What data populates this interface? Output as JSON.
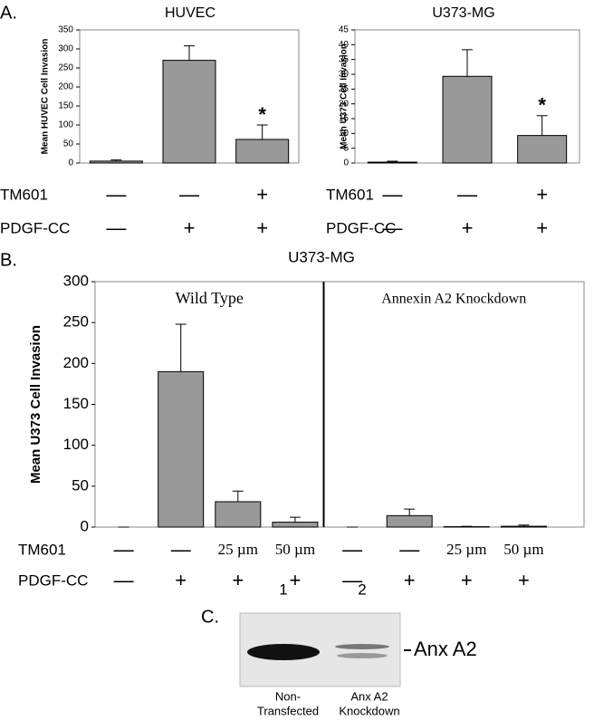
{
  "chart_data": [
    {
      "type": "bar",
      "title": "HUVEC",
      "y_label": "Mean HUVEC Cell Invasion",
      "categories": [
        null,
        null,
        null
      ],
      "values": [
        5,
        270,
        62
      ],
      "errors": [
        3,
        38,
        38
      ],
      "color": "#999999",
      "ylim": [
        0,
        350
      ],
      "yticks": [
        0,
        50,
        100,
        150,
        200,
        250,
        300,
        350
      ],
      "annotation": "*",
      "conditions": [
        {
          "name": "TM601",
          "labels": [
            "—",
            "—",
            "+"
          ]
        },
        {
          "name": "PDGF-CC",
          "labels": [
            "—",
            "+",
            "+"
          ]
        }
      ]
    },
    {
      "type": "bar",
      "title": "U373-MG",
      "y_label": "Mean U373 Cell Invasion",
      "categories": [
        null,
        null,
        null
      ],
      "values": [
        0.3,
        29.3,
        9.3
      ],
      "errors": [
        0.3,
        9,
        6.7
      ],
      "color": "#999999",
      "ylim": [
        0,
        45
      ],
      "yticks": [
        0,
        5,
        10,
        15,
        20,
        25,
        30,
        35,
        40,
        45
      ],
      "annotation": "*",
      "conditions": [
        {
          "name": "TM601",
          "labels": [
            "—",
            "—",
            "+"
          ]
        },
        {
          "name": "PDGF-CC",
          "labels": [
            "—",
            "+",
            "+"
          ]
        }
      ]
    },
    {
      "type": "bar",
      "title": "U373-MG",
      "y_label": "Mean U373 Cell Invasion",
      "panel_titles": [
        "Wild Type",
        "Annexin A2 Knockdown"
      ],
      "categories": [
        null,
        null,
        null,
        null,
        null,
        null,
        null,
        null
      ],
      "values": [
        0,
        190,
        31,
        6,
        0,
        14,
        0.5,
        1
      ],
      "errors": [
        0,
        58,
        13,
        6,
        0,
        8,
        0.5,
        1.5
      ],
      "color": "#999999",
      "ylim": [
        0,
        300
      ],
      "yticks": [
        0,
        50,
        100,
        150,
        200,
        250,
        300
      ],
      "conditions": [
        {
          "name": "TM601",
          "labels": [
            "—",
            "—",
            "25 µm",
            "50 µm",
            "—",
            "—",
            "25 µm",
            "50 µm"
          ]
        },
        {
          "name": "PDGF-CC",
          "labels": [
            "—",
            "+",
            "+",
            "+",
            "—",
            "+",
            "+",
            "+"
          ]
        }
      ]
    }
  ],
  "panel_labels": [
    "A.",
    "B.",
    "C."
  ],
  "blot": {
    "lane_numbers": [
      "1",
      "2"
    ],
    "band_label": "Anx A2",
    "lane_labels": [
      [
        "Non-",
        "Transfected"
      ],
      [
        "Anx A2",
        "Knockdown"
      ]
    ]
  }
}
